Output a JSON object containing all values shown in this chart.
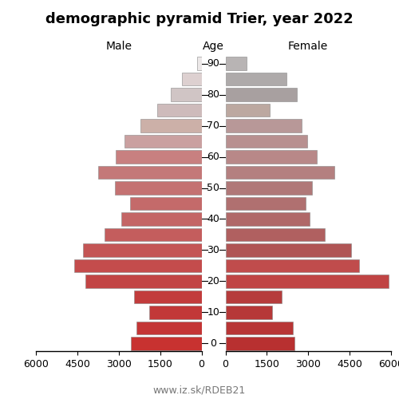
{
  "title": "demographic pyramid Trier, year 2022",
  "label_male": "Male",
  "label_age": "Age",
  "label_female": "Female",
  "footer": "www.iz.sk/RDEB21",
  "age_groups": [
    0,
    5,
    10,
    15,
    20,
    25,
    30,
    35,
    40,
    45,
    50,
    55,
    60,
    65,
    70,
    75,
    80,
    85,
    90
  ],
  "male_values": [
    2550,
    2350,
    1900,
    2450,
    4200,
    4600,
    4300,
    3500,
    2900,
    2600,
    3150,
    3750,
    3100,
    2800,
    2200,
    1600,
    1100,
    700,
    160
  ],
  "female_values": [
    2500,
    2450,
    1700,
    2050,
    5900,
    4850,
    4550,
    3600,
    3050,
    2900,
    3150,
    3950,
    3300,
    2950,
    2750,
    1600,
    2600,
    2200,
    780
  ],
  "xlim": 6000,
  "xticks": [
    0,
    1500,
    3000,
    4500,
    6000
  ],
  "bar_height": 0.85,
  "male_colors": [
    "#c83230",
    "#c43535",
    "#c23838",
    "#c23c3c",
    "#c24444",
    "#c44c4c",
    "#c45555",
    "#c45d5d",
    "#c46565",
    "#c46a6a",
    "#c47272",
    "#c47878",
    "#c88080",
    "#caa0a0",
    "#ccb0a8",
    "#cebbbb",
    "#d0c5c5",
    "#ddd0d0",
    "#ece8e8"
  ],
  "female_colors": [
    "#b83030",
    "#b83535",
    "#b63838",
    "#b63c3c",
    "#c04444",
    "#c04c4c",
    "#b05555",
    "#b06060",
    "#b06868",
    "#b07070",
    "#b07878",
    "#b48080",
    "#b88888",
    "#b89090",
    "#b89898",
    "#bca8a0",
    "#a8a0a0",
    "#aeaaaa",
    "#b8b4b4"
  ],
  "edge_color": "#888888",
  "bg_color": "#ffffff",
  "title_fontsize": 13,
  "label_fontsize": 10,
  "tick_fontsize": 9,
  "footer_fontsize": 9
}
